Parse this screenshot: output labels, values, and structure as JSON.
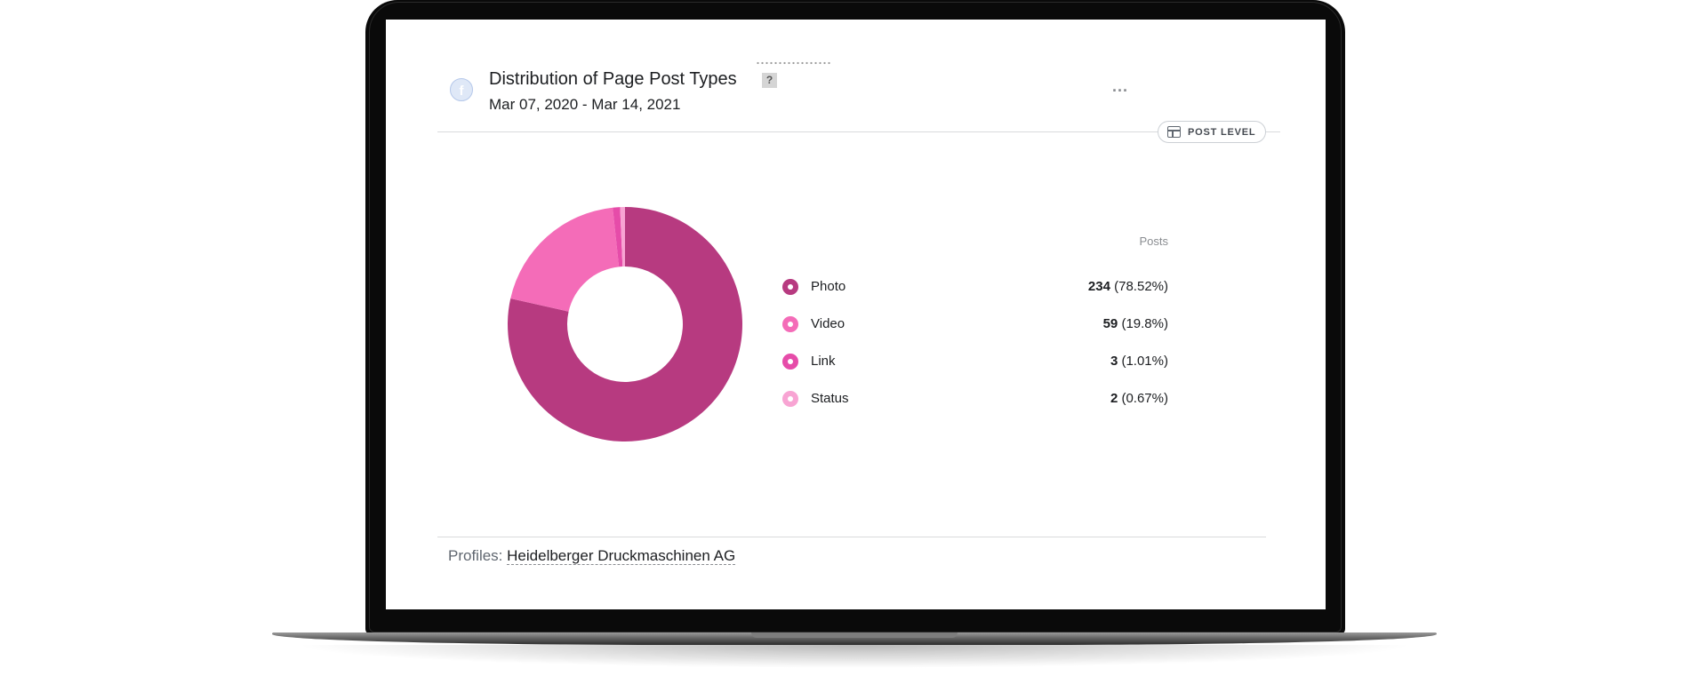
{
  "card": {
    "title": "Distribution of Page Post Types",
    "help_label": "?",
    "date_range": "Mar 07, 2020 - Mar 14, 2021",
    "more_label": "...",
    "post_level_label": "POST LEVEL",
    "footer_prefix": "Profiles:",
    "footer_profile": "Heidelberger Druckmaschinen AG"
  },
  "icons": {
    "profile": "facebook-profile-icon",
    "help": "help-icon",
    "more": "more-options-icon",
    "post_level": "post-level-icon"
  },
  "chart_data": {
    "type": "pie",
    "style": "donut",
    "value_header": "Posts",
    "series": [
      {
        "name": "Photo",
        "value": 234,
        "percent": "78.52%",
        "color": "#b73a80"
      },
      {
        "name": "Video",
        "value": 59,
        "percent": "19.8%",
        "color": "#f46cb8"
      },
      {
        "name": "Link",
        "value": 3,
        "percent": "1.01%",
        "color": "#e64ca9"
      },
      {
        "name": "Status",
        "value": 2,
        "percent": "0.67%",
        "color": "#f8a4d3"
      }
    ]
  }
}
